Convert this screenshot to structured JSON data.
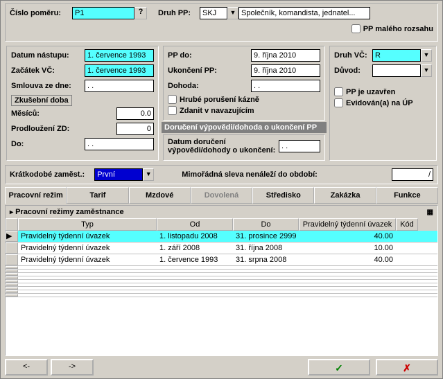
{
  "top": {
    "cislo_pomeru_label": "Číslo poměru:",
    "cislo_pomeru_value": "P1",
    "druh_pp_label": "Druh PP:",
    "druh_pp_code": "SKJ",
    "druh_pp_desc": "Společník, komandista, jednatel...",
    "pp_maleho_label": "PP malého rozsahu"
  },
  "left": {
    "datum_nastupu_label": "Datum nástupu:",
    "datum_nastupu_value": "1. července 1993",
    "zacatek_vc_label": "Začátek VČ:",
    "zacatek_vc_value": "1. července 1993",
    "smlouva_label": "Smlouva ze dne:",
    "smlouva_value": ". .",
    "zkusebni_legend": "Zkušební doba",
    "mesicu_label": "Měsíců:",
    "mesicu_value": "0.0",
    "prodlouzeni_label": "Prodloužení ZD:",
    "prodlouzeni_value": "0",
    "do_label": "Do:",
    "do_value": ". ."
  },
  "mid": {
    "pp_do_label": "PP do:",
    "pp_do_value": "9. října 2010",
    "ukonceni_label": "Ukončení PP:",
    "ukonceni_value": "9. října 2010",
    "dohoda_label": "Dohoda:",
    "dohoda_value": ". .",
    "hrube_label": "Hrubé porušení kázně",
    "zdanit_label": "Zdanit v navazujícím",
    "doruceni_title": "Doručení výpovědi/dohoda o ukončení PP",
    "doruceni_label": "Datum doručení výpovědi/dohody o ukončení:",
    "doruceni_value": ". ."
  },
  "right": {
    "druh_vc_label": "Druh VČ:",
    "druh_vc_value": "R",
    "duvod_label": "Důvod:",
    "duvod_value": "",
    "uzavren_label": "PP je uzavřen",
    "evidovan_label": "Evidován(a) na ÚP"
  },
  "mid2": {
    "kratkodobe_label": "Krátkodobé zaměst.:",
    "kratkodobe_value": "První",
    "mimoradna_label": "Mimořádná sleva nenáleží do období:",
    "mimoradna_value": "/"
  },
  "tabs": {
    "t0": "Pracovní režim",
    "t1": "Tarif",
    "t2": "Mzdové",
    "t3": "Dovolená",
    "t4": "Středisko",
    "t5": "Zakázka",
    "t6": "Funkce"
  },
  "grid": {
    "title": "Pracovní režimy zaměstnance",
    "h_typ": "Typ",
    "h_od": "Od",
    "h_do": "Do",
    "h_uvazek": "Pravidelný týdenní úvazek",
    "h_kod": "Kód",
    "rows": [
      {
        "typ": "Pravidelný týdenní úvazek",
        "od": "1. listopadu 2008",
        "do": "31. prosince 2999",
        "uvazek": "40.00",
        "kod": ""
      },
      {
        "typ": "Pravidelný týdenní úvazek",
        "od": "1. září 2008",
        "do": "31. října 2008",
        "uvazek": "10.00",
        "kod": ""
      },
      {
        "typ": "Pravidelný týdenní úvazek",
        "od": "1. července 1993",
        "do": "31. srpna 2008",
        "uvazek": "40.00",
        "kod": ""
      }
    ]
  },
  "nav": {
    "prev": "<-",
    "next": "->",
    "ok": "✓",
    "cancel": "✗"
  }
}
